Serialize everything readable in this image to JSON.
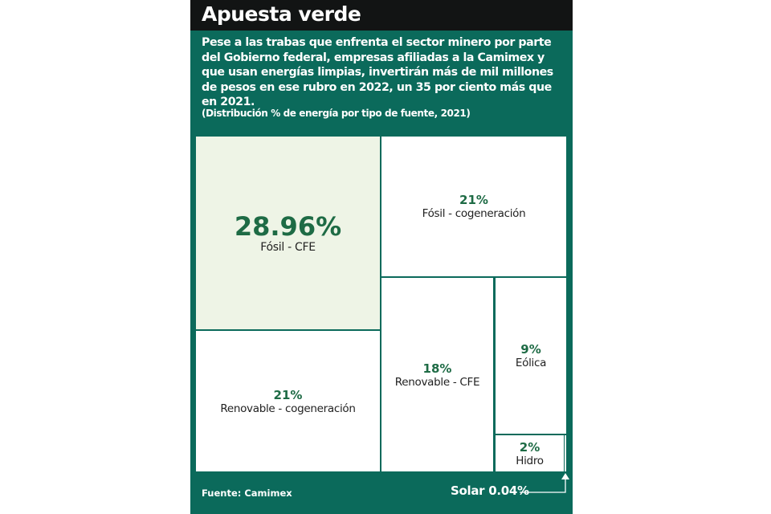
{
  "title": "Apuesta verde",
  "description": "Pese a las trabas que enfrenta el sector minero por parte del Gobierno federal, empresas afiliadas a la Camimex y que usan energías limpias, invertirán más de mil millones de pesos en ese rubro en 2022, un 35 por ciento más que en 2021.",
  "source": "Fuente: Camimex",
  "colors": {
    "panel": "#0b6a5b",
    "header": "#121414",
    "highlight": "#eef4e6",
    "percent": "#1e6b45"
  },
  "chart_data": {
    "type": "treemap",
    "title": "(Distribución % de energía por tipo de fuente, 2021)",
    "items": [
      {
        "name": "Fósil - CFE",
        "value": 28.96,
        "label": "28.96%"
      },
      {
        "name": "Fósil - cogeneración",
        "value": 21,
        "label": "21%"
      },
      {
        "name": "Renovable - cogeneración",
        "value": 21,
        "label": "21%"
      },
      {
        "name": "Renovable - CFE",
        "value": 18,
        "label": "18%"
      },
      {
        "name": "Eólica",
        "value": 9,
        "label": "9%"
      },
      {
        "name": "Hidro",
        "value": 2,
        "label": "2%"
      },
      {
        "name": "Solar",
        "value": 0.04,
        "label": "Solar 0.04%"
      }
    ]
  }
}
